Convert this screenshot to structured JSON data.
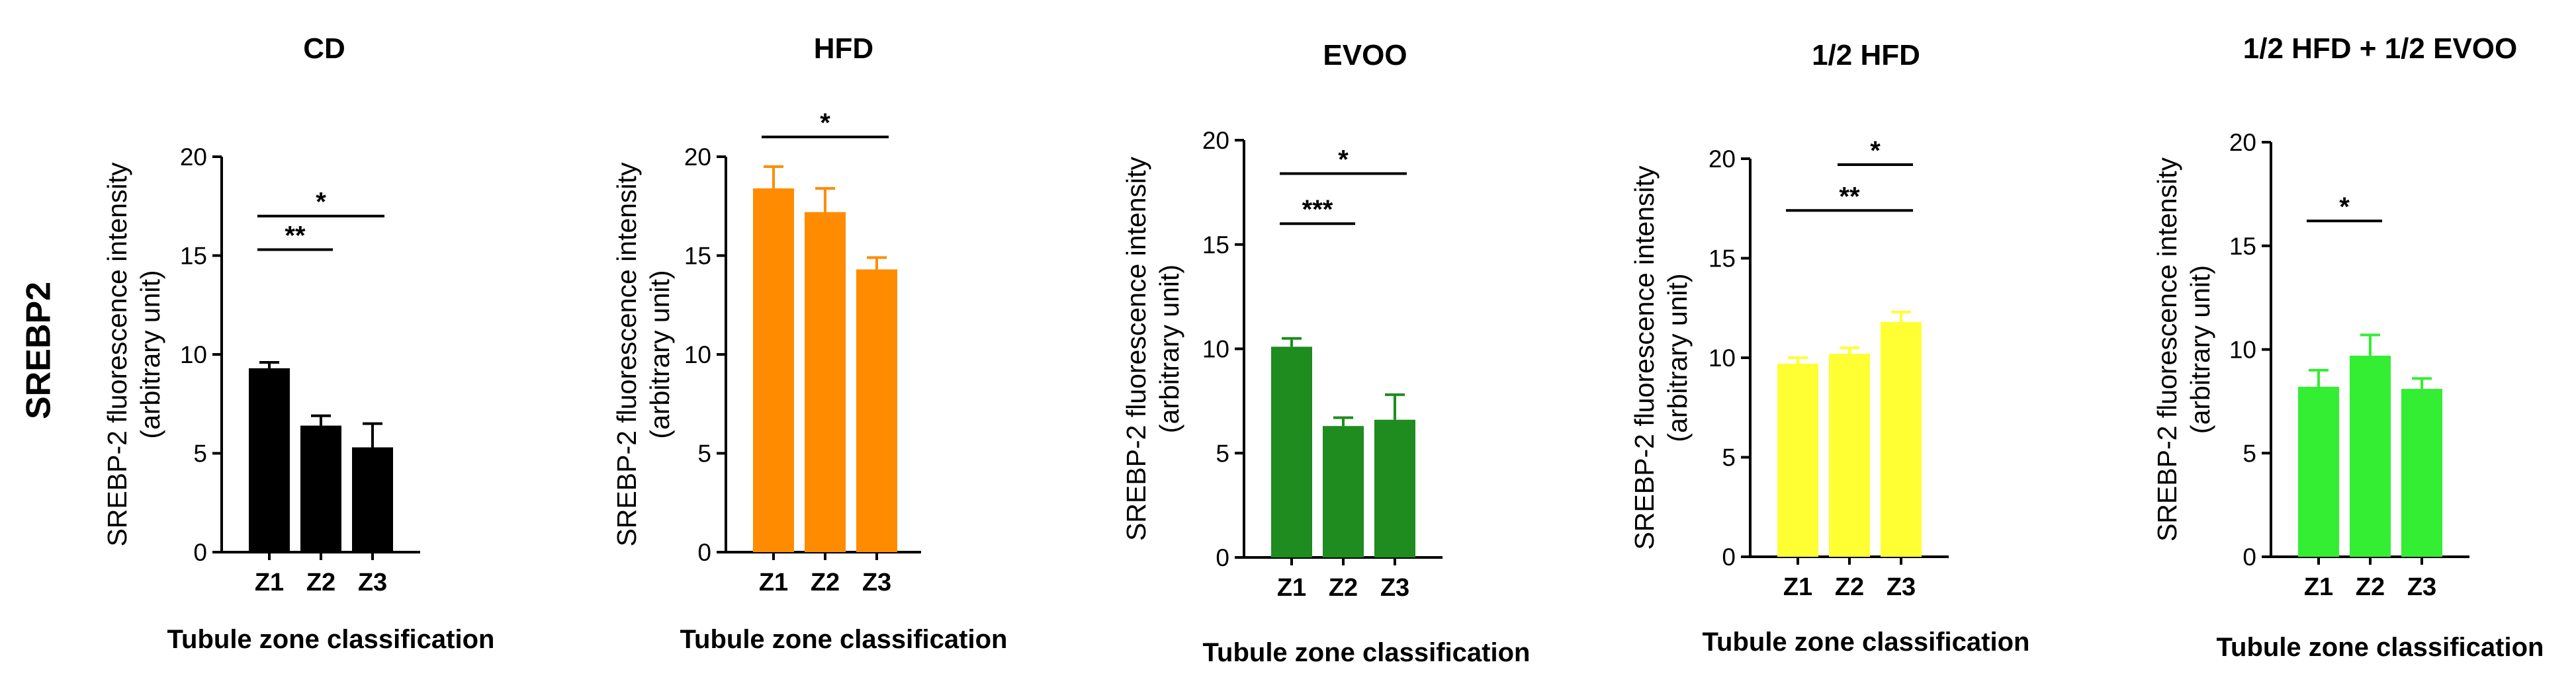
{
  "row_label": "SREBP2",
  "chart_data": [
    {
      "type": "bar",
      "title": "CD",
      "ylabel": [
        "SREBP-2 fluorescence intensity",
        "(arbitrary unit)"
      ],
      "xlabel": "Tubule zone classification",
      "categories": [
        "Z1",
        "Z2",
        "Z3"
      ],
      "values": [
        9.3,
        6.4,
        5.3
      ],
      "errors": [
        0.3,
        0.5,
        1.2
      ],
      "yticks": [
        0,
        5,
        10,
        15,
        20
      ],
      "ylim": [
        0,
        20
      ],
      "color": "#000000",
      "significance": [
        {
          "from": 0,
          "to": 1,
          "y": 15.3,
          "label": "**"
        },
        {
          "from": 0,
          "to": 2,
          "y": 17.0,
          "label": "*"
        }
      ]
    },
    {
      "type": "bar",
      "title": "HFD",
      "ylabel": [
        "SREBP-2 fluorescence intensity",
        "(arbitrary unit)"
      ],
      "xlabel": "Tubule zone classification",
      "categories": [
        "Z1",
        "Z2",
        "Z3"
      ],
      "values": [
        18.4,
        17.2,
        14.3
      ],
      "errors": [
        1.1,
        1.2,
        0.6
      ],
      "yticks": [
        0,
        5,
        10,
        15,
        20
      ],
      "ylim": [
        0,
        21
      ],
      "color": "#ff8c00",
      "significance": [
        {
          "from": 0,
          "to": 2,
          "y": 21.0,
          "label": "*"
        }
      ]
    },
    {
      "type": "bar",
      "title": "EVOO",
      "ylabel": [
        "SREBP-2 fluorescence intensity",
        "(arbitrary unit)"
      ],
      "xlabel": "Tubule zone classification",
      "categories": [
        "Z1",
        "Z2",
        "Z3"
      ],
      "values": [
        10.1,
        6.3,
        6.6
      ],
      "errors": [
        0.4,
        0.4,
        1.2
      ],
      "yticks": [
        0,
        5,
        10,
        15,
        20
      ],
      "ylim": [
        0,
        20
      ],
      "color": "#1e8c1e",
      "significance": [
        {
          "from": 0,
          "to": 1,
          "y": 16.0,
          "label": "***"
        },
        {
          "from": 0,
          "to": 2,
          "y": 18.4,
          "label": "*"
        }
      ]
    },
    {
      "type": "bar",
      "title": "1/2 HFD",
      "ylabel": [
        "SREBP-2 fluorescence intensity",
        "(arbitrary unit)"
      ],
      "xlabel": "Tubule zone classification",
      "categories": [
        "Z1",
        "Z2",
        "Z3"
      ],
      "values": [
        9.7,
        10.2,
        11.8
      ],
      "errors": [
        0.3,
        0.3,
        0.5
      ],
      "yticks": [
        0,
        5,
        10,
        15,
        20
      ],
      "ylim": [
        0,
        20
      ],
      "color": "#ffff33",
      "significance": [
        {
          "from": 1,
          "to": 2,
          "y": 19.7,
          "label": "*"
        },
        {
          "from": 0,
          "to": 2,
          "y": 17.4,
          "label": "**"
        }
      ]
    },
    {
      "type": "bar",
      "title": "1/2 HFD + 1/2 EVOO",
      "ylabel": [
        "SREBP-2 fluorescence intensity",
        "(arbitrary unit)"
      ],
      "xlabel": "Tubule zone classification",
      "categories": [
        "Z1",
        "Z2",
        "Z3"
      ],
      "values": [
        8.2,
        9.7,
        8.1
      ],
      "errors": [
        0.8,
        1.0,
        0.5
      ],
      "yticks": [
        0,
        5,
        10,
        15,
        20
      ],
      "ylim": [
        0,
        20
      ],
      "color": "#33ee33",
      "significance": [
        {
          "from": 0,
          "to": 1,
          "y": 16.2,
          "label": "*"
        }
      ]
    }
  ]
}
